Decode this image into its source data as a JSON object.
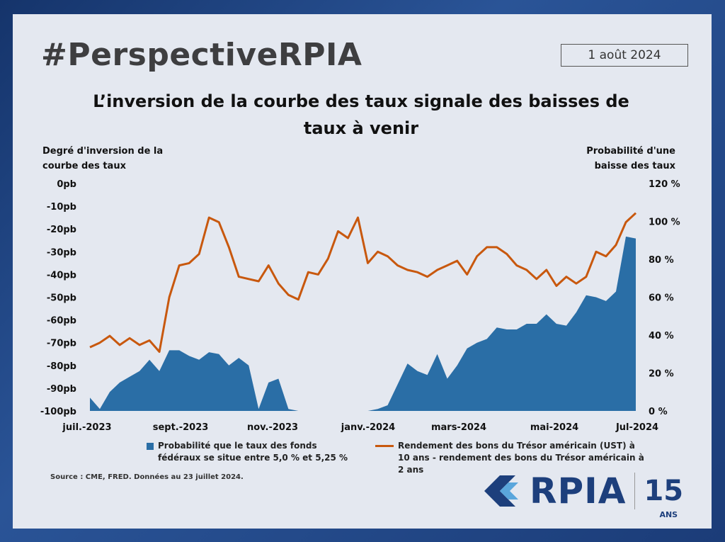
{
  "header": {
    "brand": "#PerspectiveRPIA",
    "date": "1 août 2024"
  },
  "chart_title": "L’inversion de la courbe des taux signale des baisses de taux à venir",
  "left_axis_title": [
    "Degré d'inversion de la",
    "courbe des taux"
  ],
  "right_axis_title": [
    "Probabilité d'une",
    "baisse des taux"
  ],
  "legend": {
    "area": "Probabilité que le taux des fonds fédéraux se situe entre 5,0 % et 5,25 %",
    "line": "Rendement des bons du Trésor américain (UST) à 10 ans - rendement des bons du Trésor américain à 2 ans"
  },
  "source": "Source : CME, FRED. Données au 23 juillet 2024.",
  "logo": {
    "text": "RPIA",
    "anniversary": "15",
    "anniversary_suffix": "ANS"
  },
  "colors": {
    "area": "#2a6ea6",
    "line": "#c8580e",
    "brand": "#1d3f7c"
  },
  "chart_data": {
    "type": "line+area",
    "x_ticks": [
      "juil.-2023",
      "sept.-2023",
      "nov.-2023",
      "janv.-2024",
      "mars-2024",
      "mai-2024",
      "Jul-2024"
    ],
    "y_left": {
      "ticks": [
        "0pb",
        "-10pb",
        "-20pb",
        "-30pb",
        "-40pb",
        "-50pb",
        "-60pb",
        "-70pb",
        "-80pb",
        "-90pb",
        "-100pb"
      ],
      "range": [
        -100,
        0
      ]
    },
    "y_right": {
      "ticks": [
        "120 %",
        "100 %",
        "80 %",
        "60 %",
        "40 %",
        "20 %",
        "0 %"
      ],
      "range": [
        0,
        120
      ]
    },
    "grid": false,
    "legend_position": "bottom",
    "dates": [
      "2023-07-03",
      "2023-07-10",
      "2023-07-17",
      "2023-07-24",
      "2023-07-31",
      "2023-08-07",
      "2023-08-14",
      "2023-08-21",
      "2023-08-28",
      "2023-09-04",
      "2023-09-11",
      "2023-09-18",
      "2023-09-25",
      "2023-10-02",
      "2023-10-09",
      "2023-10-16",
      "2023-10-23",
      "2023-10-30",
      "2023-11-06",
      "2023-11-13",
      "2023-11-20",
      "2023-11-27",
      "2023-12-04",
      "2023-12-11",
      "2023-12-18",
      "2023-12-25",
      "2024-01-01",
      "2024-01-08",
      "2024-01-15",
      "2024-01-22",
      "2024-01-29",
      "2024-02-05",
      "2024-02-12",
      "2024-02-19",
      "2024-02-26",
      "2024-03-04",
      "2024-03-11",
      "2024-03-18",
      "2024-03-25",
      "2024-04-01",
      "2024-04-08",
      "2024-04-15",
      "2024-04-22",
      "2024-04-29",
      "2024-05-06",
      "2024-05-13",
      "2024-05-20",
      "2024-05-27",
      "2024-06-03",
      "2024-06-10",
      "2024-06-17",
      "2024-06-24",
      "2024-07-01",
      "2024-07-08",
      "2024-07-15",
      "2024-07-22"
    ],
    "series": [
      {
        "name": "Probabilité que le taux des fonds fédéraux se situe entre 5,0 % et 5,25 %",
        "type": "area",
        "axis": "right",
        "unit": "%",
        "values": [
          7,
          1,
          10,
          15,
          18,
          21,
          27,
          21,
          32,
          32,
          29,
          27,
          31,
          30,
          24,
          28,
          24,
          1,
          15,
          17,
          1,
          0,
          0,
          0,
          0,
          0,
          0,
          0,
          0,
          1,
          3,
          14,
          25,
          21,
          19,
          30,
          17,
          24,
          33,
          36,
          38,
          44,
          43,
          43,
          46,
          46,
          51,
          46,
          45,
          52,
          61,
          60,
          58,
          63,
          92,
          91
        ]
      },
      {
        "name": "Rendement des bons du Trésor américain (UST) à 10 ans - rendement des bons du Trésor américain à 2 ans",
        "type": "line",
        "axis": "left",
        "unit": "pb",
        "values": [
          -72,
          -70,
          -67,
          -71,
          -68,
          -71,
          -69,
          -74,
          -50,
          -36,
          -35,
          -31,
          -15,
          -17,
          -28,
          -41,
          -42,
          -43,
          -36,
          -44,
          -49,
          -51,
          -39,
          -40,
          -33,
          -21,
          -24,
          -15,
          -35,
          -30,
          -32,
          -36,
          -38,
          -39,
          -41,
          -38,
          -36,
          -34,
          -40,
          -32,
          -28,
          -28,
          -31,
          -36,
          -38,
          -42,
          -38,
          -45,
          -41,
          -44,
          -41,
          -30,
          -32,
          -27,
          -17,
          -13
        ]
      }
    ]
  }
}
